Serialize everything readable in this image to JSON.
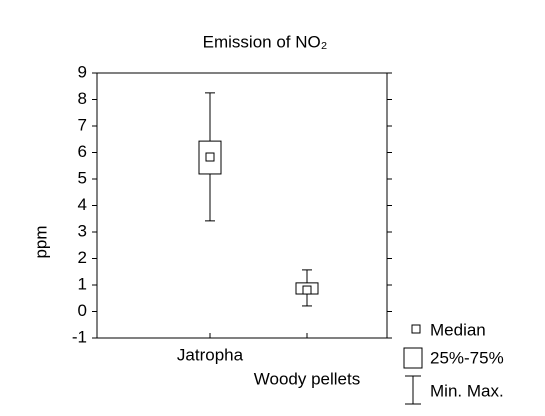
{
  "chart_data": {
    "type": "box",
    "title": "Emission of NO₂",
    "ylabel": "ppm",
    "categories": [
      "Jatropha",
      "Woody pellets"
    ],
    "median": [
      5.83,
      0.81
    ],
    "q1": [
      5.19,
      0.66
    ],
    "q3": [
      6.43,
      1.08
    ],
    "min": [
      3.42,
      0.21
    ],
    "max": [
      8.25,
      1.57
    ],
    "ylim": [
      -1,
      9
    ],
    "yticks": [
      -1,
      0,
      1,
      2,
      3,
      4,
      5,
      6,
      7,
      8,
      9
    ],
    "legend": [
      "Median",
      "25%-75%",
      "Min. Max."
    ],
    "color": "#000000"
  }
}
